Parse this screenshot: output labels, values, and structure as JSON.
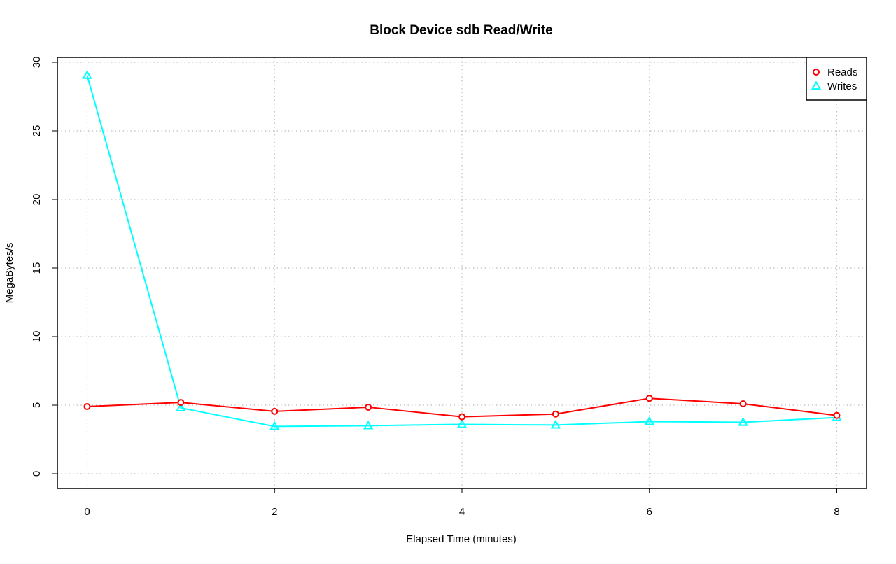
{
  "chart_data": {
    "type": "line",
    "title": "Block Device sdb Read/Write",
    "xlabel": "Elapsed Time (minutes)",
    "ylabel": "MegaBytes/s",
    "x": [
      0,
      1,
      2,
      3,
      4,
      5,
      6,
      7,
      8
    ],
    "xlim": [
      0,
      8
    ],
    "ylim": [
      0,
      30
    ],
    "x_ticks": [
      0,
      2,
      4,
      6,
      8
    ],
    "y_ticks": [
      0,
      5,
      10,
      15,
      20,
      25,
      30
    ],
    "x_tick_labels": [
      "0",
      "2",
      "4",
      "6",
      "8"
    ],
    "y_tick_labels": [
      "0",
      "5",
      "10",
      "15",
      "20",
      "25",
      "30"
    ],
    "grid": true,
    "legend_position": "top-right",
    "series": [
      {
        "name": "Reads",
        "color": "#ff0000",
        "marker": "circle",
        "values": [
          4.9,
          5.2,
          4.55,
          4.85,
          4.15,
          4.35,
          5.5,
          5.1,
          4.25
        ]
      },
      {
        "name": "Writes",
        "color": "#00ffff",
        "marker": "triangle",
        "values": [
          29.05,
          4.8,
          3.45,
          3.5,
          3.6,
          3.55,
          3.8,
          3.75,
          4.1
        ]
      }
    ]
  }
}
